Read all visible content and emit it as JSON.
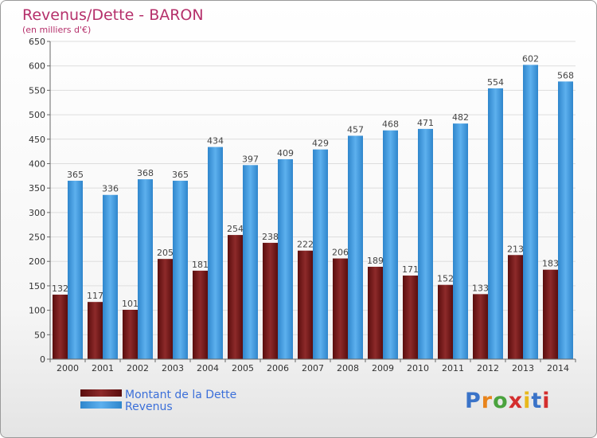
{
  "chart_data": {
    "type": "bar",
    "title": "Revenus/Dette - BARON",
    "subtitle": "(en milliers d'€)",
    "categories": [
      "2000",
      "2001",
      "2002",
      "2003",
      "2004",
      "2005",
      "2006",
      "2007",
      "2008",
      "2009",
      "2010",
      "2011",
      "2012",
      "2013",
      "2014"
    ],
    "series": [
      {
        "name": "Montant de la Dette",
        "color": "#7a1b1b",
        "values": [
          132,
          117,
          101,
          205,
          181,
          254,
          238,
          222,
          206,
          189,
          171,
          152,
          133,
          213,
          183
        ]
      },
      {
        "name": "Revenus",
        "color": "#3d9be0",
        "values": [
          365,
          336,
          368,
          365,
          434,
          397,
          409,
          429,
          457,
          468,
          471,
          482,
          554,
          602,
          568
        ]
      }
    ],
    "ylim": [
      0,
      650
    ],
    "yticks": [
      0,
      50,
      100,
      150,
      200,
      250,
      300,
      350,
      400,
      450,
      500,
      550,
      600,
      650
    ],
    "grid": true,
    "legend_position": "bottom-left"
  },
  "logo": {
    "letters": [
      "P",
      "r",
      "o",
      "x",
      "i",
      "t",
      "i"
    ],
    "colors": [
      "#3a73c8",
      "#e8841c",
      "#4aa33e",
      "#d42e2e",
      "#e8b81c",
      "#3a73c8",
      "#d42e2e"
    ]
  }
}
